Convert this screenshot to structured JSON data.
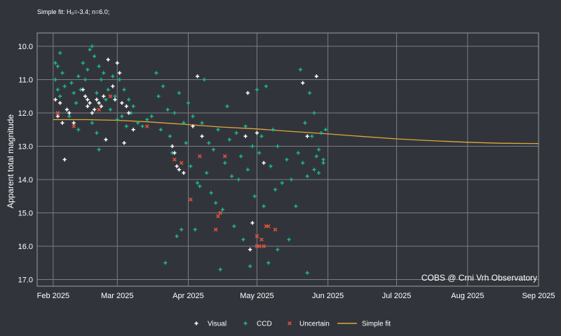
{
  "chart_data": {
    "type": "scatter",
    "fit_label": "Simple fit: H₀=-3.4; n=6.0;",
    "ylabel": "Apparent total magnitude",
    "y_inverted": true,
    "ylim": [
      17.2,
      9.6
    ],
    "y_ticks": [
      "10.0",
      "11.0",
      "12.0",
      "13.0",
      "14.0",
      "15.0",
      "16.0",
      "17.0"
    ],
    "xlim": [
      "2025-01-25",
      "2025-09-01"
    ],
    "x_ticks": [
      {
        "date": "2025-02-01",
        "label": "Feb 2025"
      },
      {
        "date": "2025-03-01",
        "label": "Mar 2025"
      },
      {
        "date": "2025-04-01",
        "label": "Apr 2025"
      },
      {
        "date": "2025-05-01",
        "label": "May 2025"
      },
      {
        "date": "2025-06-01",
        "label": "Jun 2025"
      },
      {
        "date": "2025-07-01",
        "label": "Jul 2025"
      },
      {
        "date": "2025-08-01",
        "label": "Aug 2025"
      },
      {
        "date": "2025-09-01",
        "label": "Sep 2025"
      }
    ],
    "grid": true,
    "credit": "COBS @ Crni Vrh Observatory",
    "legend_position": "bottom",
    "colors": {
      "background": "#31353b",
      "grid": "#7b7f84",
      "visual": "#ffffff",
      "ccd": "#1fb489",
      "uncertain": "#e0503a",
      "fit": "#e3a53a"
    },
    "series": [
      {
        "name": "Visual",
        "marker": "plus",
        "points": [
          [
            "2025-02-02",
            11.6
          ],
          [
            "2025-02-03",
            12.1
          ],
          [
            "2025-02-04",
            11.7
          ],
          [
            "2025-02-05",
            12.3
          ],
          [
            "2025-02-06",
            13.4
          ],
          [
            "2025-02-07",
            11.9
          ],
          [
            "2025-02-08",
            12.0
          ],
          [
            "2025-02-10",
            12.3
          ],
          [
            "2025-02-14",
            11.3
          ],
          [
            "2025-02-15",
            11.5
          ],
          [
            "2025-02-16",
            11.6
          ],
          [
            "2025-02-16",
            11.8
          ],
          [
            "2025-02-17",
            11.7
          ],
          [
            "2025-02-18",
            12.0
          ],
          [
            "2025-02-19",
            11.9
          ],
          [
            "2025-02-20",
            11.6
          ],
          [
            "2025-02-21",
            11.7
          ],
          [
            "2025-02-22",
            11.8
          ],
          [
            "2025-02-23",
            11.5
          ],
          [
            "2025-02-24",
            12.8
          ],
          [
            "2025-02-25",
            10.4
          ],
          [
            "2025-02-27",
            11.2
          ],
          [
            "2025-02-28",
            11.6
          ],
          [
            "2025-03-01",
            10.5
          ],
          [
            "2025-03-02",
            10.8
          ],
          [
            "2025-03-03",
            11.7
          ],
          [
            "2025-03-04",
            12.9
          ],
          [
            "2025-03-05",
            11.8
          ],
          [
            "2025-03-06",
            12.0
          ],
          [
            "2025-03-08",
            12.5
          ],
          [
            "2025-03-25",
            13.0
          ],
          [
            "2025-03-26",
            13.2
          ],
          [
            "2025-03-27",
            13.6
          ],
          [
            "2025-03-28",
            13.7
          ],
          [
            "2025-03-30",
            13.8
          ],
          [
            "2025-04-03",
            12.4
          ],
          [
            "2025-04-05",
            10.9
          ],
          [
            "2025-04-07",
            12.7
          ],
          [
            "2025-04-26",
            12.7
          ],
          [
            "2025-04-27",
            11.4
          ],
          [
            "2025-04-28",
            16.1
          ],
          [
            "2025-04-29",
            15.3
          ],
          [
            "2025-05-01",
            12.6
          ],
          [
            "2025-05-04",
            13.5
          ],
          [
            "2025-05-21",
            11.1
          ],
          [
            "2025-05-23",
            12.7
          ],
          [
            "2025-05-27",
            10.9
          ]
        ]
      },
      {
        "name": "CCD",
        "marker": "plus",
        "points": [
          [
            "2025-02-02",
            10.5
          ],
          [
            "2025-02-02",
            11.0
          ],
          [
            "2025-02-03",
            11.3
          ],
          [
            "2025-02-03",
            10.6
          ],
          [
            "2025-02-04",
            11.5
          ],
          [
            "2025-02-04",
            10.2
          ],
          [
            "2025-02-05",
            10.8
          ],
          [
            "2025-02-06",
            11.2
          ],
          [
            "2025-02-07",
            11.9
          ],
          [
            "2025-02-08",
            12.1
          ],
          [
            "2025-02-09",
            11.1
          ],
          [
            "2025-02-10",
            11.4
          ],
          [
            "2025-02-11",
            11.7
          ],
          [
            "2025-02-12",
            10.9
          ],
          [
            "2025-02-13",
            11.3
          ],
          [
            "2025-02-14",
            10.5
          ],
          [
            "2025-02-15",
            11.0
          ],
          [
            "2025-02-16",
            10.7
          ],
          [
            "2025-02-17",
            10.1
          ],
          [
            "2025-02-18",
            10.0
          ],
          [
            "2025-02-19",
            10.3
          ],
          [
            "2025-02-20",
            11.4
          ],
          [
            "2025-02-21",
            10.6
          ],
          [
            "2025-02-22",
            11.0
          ],
          [
            "2025-02-23",
            10.8
          ],
          [
            "2025-02-24",
            11.6
          ],
          [
            "2025-02-25",
            11.3
          ],
          [
            "2025-02-26",
            11.9
          ],
          [
            "2025-02-27",
            10.9
          ],
          [
            "2025-02-28",
            11.5
          ],
          [
            "2025-03-01",
            12.2
          ],
          [
            "2025-03-02",
            11.0
          ],
          [
            "2025-03-03",
            12.1
          ],
          [
            "2025-03-04",
            11.3
          ],
          [
            "2025-03-05",
            12.4
          ],
          [
            "2025-03-06",
            11.6
          ],
          [
            "2025-03-07",
            12.0
          ],
          [
            "2025-03-08",
            11.8
          ],
          [
            "2025-02-20",
            12.6
          ],
          [
            "2025-02-21",
            13.1
          ],
          [
            "2025-02-12",
            12.5
          ],
          [
            "2025-02-18",
            12.3
          ],
          [
            "2025-03-10",
            12.3
          ],
          [
            "2025-03-12",
            12.4
          ],
          [
            "2025-03-14",
            12.2
          ],
          [
            "2025-03-16",
            12.1
          ],
          [
            "2025-03-18",
            10.8
          ],
          [
            "2025-03-19",
            11.5
          ],
          [
            "2025-03-20",
            12.5
          ],
          [
            "2025-03-21",
            11.2
          ],
          [
            "2025-03-22",
            16.5
          ],
          [
            "2025-03-23",
            11.9
          ],
          [
            "2025-03-24",
            12.7
          ],
          [
            "2025-03-25",
            13.2
          ],
          [
            "2025-03-26",
            12.0
          ],
          [
            "2025-03-27",
            15.7
          ],
          [
            "2025-03-28",
            11.4
          ],
          [
            "2025-03-29",
            15.5
          ],
          [
            "2025-03-30",
            12.3
          ],
          [
            "2025-03-31",
            12.9
          ],
          [
            "2025-04-01",
            11.7
          ],
          [
            "2025-04-02",
            13.6
          ],
          [
            "2025-04-03",
            12.1
          ],
          [
            "2025-04-04",
            15.5
          ],
          [
            "2025-04-05",
            14.1
          ],
          [
            "2025-04-06",
            14.2
          ],
          [
            "2025-04-07",
            12.3
          ],
          [
            "2025-04-08",
            11.0
          ],
          [
            "2025-04-09",
            13.8
          ],
          [
            "2025-04-10",
            12.9
          ],
          [
            "2025-04-11",
            14.4
          ],
          [
            "2025-04-12",
            13.1
          ],
          [
            "2025-04-13",
            14.7
          ],
          [
            "2025-04-14",
            12.5
          ],
          [
            "2025-04-15",
            16.7
          ],
          [
            "2025-04-16",
            14.9
          ],
          [
            "2025-04-17",
            13.5
          ],
          [
            "2025-04-18",
            11.8
          ],
          [
            "2025-04-19",
            12.8
          ],
          [
            "2025-04-20",
            13.9
          ],
          [
            "2025-04-21",
            15.4
          ],
          [
            "2025-04-22",
            12.6
          ],
          [
            "2025-04-23",
            14.0
          ],
          [
            "2025-04-24",
            13.3
          ],
          [
            "2025-04-25",
            15.8
          ],
          [
            "2025-04-26",
            12.4
          ],
          [
            "2025-04-27",
            13.7
          ],
          [
            "2025-04-28",
            16.6
          ],
          [
            "2025-04-29",
            13.0
          ],
          [
            "2025-04-30",
            14.5
          ],
          [
            "2025-05-01",
            11.3
          ],
          [
            "2025-05-02",
            13.2
          ],
          [
            "2025-05-03",
            12.7
          ],
          [
            "2025-05-04",
            14.8
          ],
          [
            "2025-05-05",
            11.2
          ],
          [
            "2025-05-06",
            16.5
          ],
          [
            "2025-05-07",
            13.6
          ],
          [
            "2025-05-08",
            12.5
          ],
          [
            "2025-05-09",
            14.3
          ],
          [
            "2025-05-10",
            13.0
          ],
          [
            "2025-05-12",
            14.1
          ],
          [
            "2025-05-14",
            13.4
          ],
          [
            "2025-05-16",
            14.0
          ],
          [
            "2025-05-18",
            14.8
          ],
          [
            "2025-05-19",
            13.2
          ],
          [
            "2025-05-20",
            10.7
          ],
          [
            "2025-05-21",
            13.5
          ],
          [
            "2025-05-22",
            12.3
          ],
          [
            "2025-05-23",
            13.9
          ],
          [
            "2025-05-24",
            11.4
          ],
          [
            "2025-05-25",
            12.7
          ],
          [
            "2025-05-26",
            13.7
          ],
          [
            "2025-05-27",
            13.3
          ],
          [
            "2025-05-28",
            13.1
          ],
          [
            "2025-05-29",
            12.6
          ],
          [
            "2025-05-30",
            13.4
          ],
          [
            "2025-05-31",
            12.5
          ],
          [
            "2025-05-28",
            13.8
          ],
          [
            "2025-05-26",
            12.0
          ],
          [
            "2025-05-30",
            13.5
          ],
          [
            "2025-05-23",
            16.8
          ],
          [
            "2025-05-15",
            15.8
          ],
          [
            "2025-05-10",
            16.1
          ]
        ]
      },
      {
        "name": "Uncertain",
        "marker": "cross",
        "points": [
          [
            "2025-02-03",
            12.0
          ],
          [
            "2025-02-10",
            12.4
          ],
          [
            "2025-02-21",
            11.9
          ],
          [
            "2025-02-26",
            11.5
          ],
          [
            "2025-03-14",
            12.4
          ],
          [
            "2025-03-26",
            13.4
          ],
          [
            "2025-03-29",
            13.5
          ],
          [
            "2025-04-06",
            13.3
          ],
          [
            "2025-04-02",
            14.6
          ],
          [
            "2025-04-13",
            15.5
          ],
          [
            "2025-04-14",
            15.1
          ],
          [
            "2025-04-15",
            15.0
          ],
          [
            "2025-04-17",
            13.3
          ],
          [
            "2025-05-01",
            15.7
          ],
          [
            "2025-05-03",
            15.8
          ],
          [
            "2025-05-04",
            16.0
          ],
          [
            "2025-05-05",
            15.4
          ],
          [
            "2025-05-06",
            15.4
          ],
          [
            "2025-05-09",
            15.5
          ],
          [
            "2025-05-01",
            16.0
          ],
          [
            "2025-05-02",
            16.0
          ]
        ]
      },
      {
        "name": "Simple fit",
        "marker": "line",
        "points": [
          [
            "2025-02-01",
            12.2
          ],
          [
            "2025-02-15",
            12.2
          ],
          [
            "2025-03-01",
            12.22
          ],
          [
            "2025-03-15",
            12.27
          ],
          [
            "2025-04-01",
            12.35
          ],
          [
            "2025-04-15",
            12.42
          ],
          [
            "2025-05-01",
            12.48
          ],
          [
            "2025-05-15",
            12.55
          ],
          [
            "2025-06-01",
            12.63
          ],
          [
            "2025-06-15",
            12.7
          ],
          [
            "2025-07-01",
            12.78
          ],
          [
            "2025-07-15",
            12.83
          ],
          [
            "2025-08-01",
            12.88
          ],
          [
            "2025-08-15",
            12.91
          ],
          [
            "2025-09-01",
            12.92
          ]
        ]
      }
    ]
  }
}
